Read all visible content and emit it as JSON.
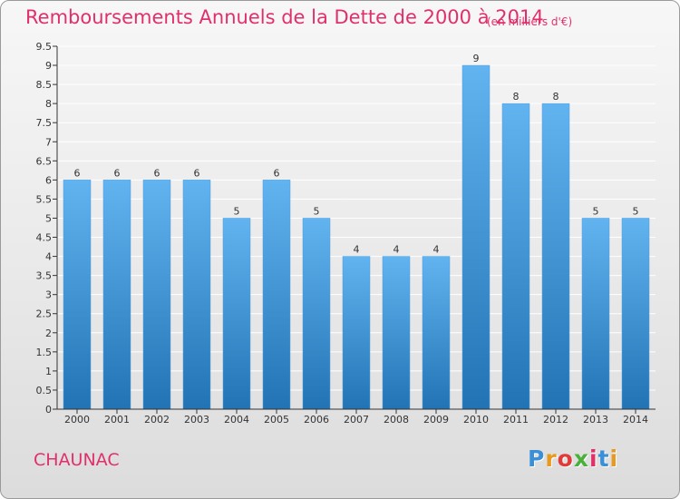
{
  "header": {
    "title": "Remboursements Annuels de la Dette de 2000 à 2014",
    "subtitle": "(en milliers d'€)"
  },
  "footer": {
    "city": "CHAUNAC",
    "logo_text": "Proxiti",
    "logo_colors": [
      "#3a8fd6",
      "#e89a1e",
      "#e03a3a",
      "#49b03a",
      "#e0306a",
      "#3a8fd6",
      "#e89a1e"
    ]
  },
  "colors": {
    "bar_top": "#62b4f0",
    "bar_bottom": "#2273b4",
    "grid": "#ffffff",
    "axis": "#333333"
  },
  "chart_data": {
    "type": "bar",
    "categories": [
      "2000",
      "2001",
      "2002",
      "2003",
      "2004",
      "2005",
      "2006",
      "2007",
      "2008",
      "2009",
      "2010",
      "2011",
      "2012",
      "2013",
      "2014"
    ],
    "values": [
      6,
      6,
      6,
      6,
      5,
      6,
      5,
      4,
      4,
      4,
      9,
      8,
      8,
      5,
      5
    ],
    "data_labels": [
      "6",
      "6",
      "6",
      "6",
      "5",
      "6",
      "5",
      "4",
      "4",
      "4",
      "9",
      "8",
      "8",
      "5",
      "5"
    ],
    "yticks": [
      "0",
      "0.5",
      "1",
      "1.5",
      "2",
      "2.5",
      "3",
      "3.5",
      "4",
      "4.5",
      "5",
      "5.5",
      "6",
      "6.5",
      "7",
      "7.5",
      "8",
      "8.5",
      "9",
      "9.5"
    ],
    "ylim": [
      0,
      9.5
    ],
    "title": "Remboursements Annuels de la Dette de 2000 à 2014",
    "xlabel": "",
    "ylabel": "",
    "grid": true
  }
}
